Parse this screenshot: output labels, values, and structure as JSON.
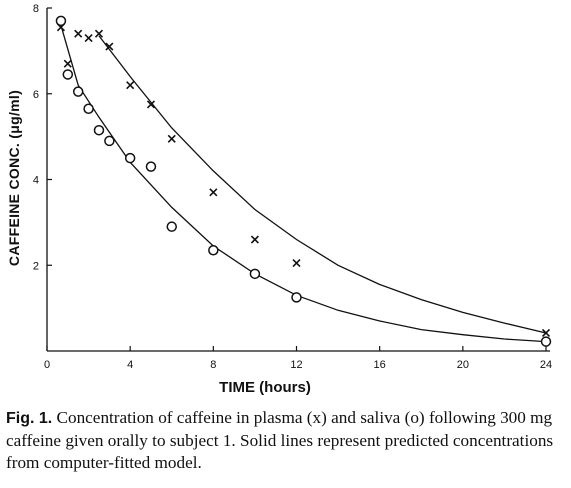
{
  "caption": {
    "fig_label": "Fig. 1.",
    "text": "Concentration of caffeine in plasma (x) and saliva (o) following 300 mg caffeine given orally to subject 1. Solid lines represent predicted concentrations from computer-fitted model."
  },
  "chart_data": {
    "type": "scatter",
    "title": "",
    "xlabel": "TIME (hours)",
    "ylabel": "CAFFEINE CONC. (μg/ml)",
    "xlim": [
      0,
      24
    ],
    "ylim": [
      0,
      8
    ],
    "x_ticks": [
      0,
      4,
      8,
      12,
      16,
      20,
      24
    ],
    "y_ticks": [
      2,
      4,
      6,
      8
    ],
    "grid": false,
    "legend": "none",
    "series": [
      {
        "name": "plasma (x)",
        "marker": "x",
        "points": [
          [
            0.67,
            7.55
          ],
          [
            1.0,
            6.7
          ],
          [
            1.5,
            7.4
          ],
          [
            2.0,
            7.3
          ],
          [
            2.5,
            7.4
          ],
          [
            3.0,
            7.1
          ],
          [
            4.0,
            6.2
          ],
          [
            5.0,
            5.75
          ],
          [
            6.0,
            4.95
          ],
          [
            8.0,
            3.7
          ],
          [
            10.0,
            2.6
          ],
          [
            12.0,
            2.05
          ],
          [
            24.0,
            0.42
          ]
        ],
        "fit": [
          [
            2.5,
            7.35
          ],
          [
            4,
            6.4
          ],
          [
            6,
            5.2
          ],
          [
            8,
            4.2
          ],
          [
            10,
            3.3
          ],
          [
            12,
            2.6
          ],
          [
            14,
            2.0
          ],
          [
            16,
            1.55
          ],
          [
            18,
            1.2
          ],
          [
            20,
            0.9
          ],
          [
            22,
            0.65
          ],
          [
            24,
            0.42
          ]
        ]
      },
      {
        "name": "saliva (o)",
        "marker": "o",
        "points": [
          [
            0.67,
            7.7
          ],
          [
            1.0,
            6.45
          ],
          [
            1.5,
            6.05
          ],
          [
            2.0,
            5.65
          ],
          [
            2.5,
            5.15
          ],
          [
            3.0,
            4.9
          ],
          [
            4.0,
            4.5
          ],
          [
            5.0,
            4.3
          ],
          [
            6.0,
            2.9
          ],
          [
            8.0,
            2.35
          ],
          [
            10.0,
            1.8
          ],
          [
            12.0,
            1.25
          ],
          [
            24.0,
            0.22
          ]
        ],
        "fit": [
          [
            0.67,
            7.6
          ],
          [
            1.5,
            6.2
          ],
          [
            2.5,
            5.45
          ],
          [
            4,
            4.4
          ],
          [
            6,
            3.35
          ],
          [
            8,
            2.45
          ],
          [
            10,
            1.8
          ],
          [
            12,
            1.3
          ],
          [
            14,
            0.95
          ],
          [
            16,
            0.7
          ],
          [
            18,
            0.5
          ],
          [
            20,
            0.38
          ],
          [
            22,
            0.28
          ],
          [
            24,
            0.22
          ]
        ]
      }
    ]
  }
}
